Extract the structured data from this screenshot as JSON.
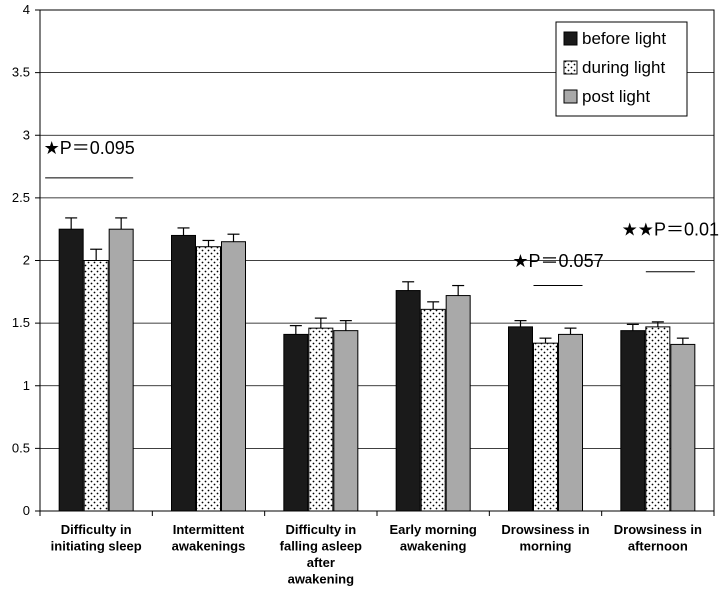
{
  "chart_data": {
    "type": "bar",
    "title": "",
    "xlabel": "",
    "ylabel": "",
    "ylim": [
      0,
      4
    ],
    "yticks": [
      0,
      0.5,
      1,
      1.5,
      2,
      2.5,
      3,
      3.5,
      4
    ],
    "ytick_labels": [
      "0",
      "0.5",
      "1",
      "1.5",
      "2",
      "2.5",
      "3",
      "3.5",
      "4"
    ],
    "grid": true,
    "legend_position": "top-right",
    "categories": [
      [
        "Difficulty in",
        "initiating sleep"
      ],
      [
        "Intermittent",
        "awakenings"
      ],
      [
        "Difficulty in",
        "falling asleep",
        "after",
        "awakening"
      ],
      [
        "Early morning",
        "awakening"
      ],
      [
        "Drowsiness in",
        "morning"
      ],
      [
        "Drowsiness in",
        "afternoon"
      ]
    ],
    "series": [
      {
        "name": "before light",
        "pattern": "solid",
        "color": "#1a1a1a",
        "values": [
          2.25,
          2.2,
          1.41,
          1.76,
          1.47,
          1.44
        ],
        "errors": [
          0.09,
          0.06,
          0.07,
          0.07,
          0.05,
          0.05
        ]
      },
      {
        "name": "during light",
        "pattern": "dots",
        "color": "#ffffff",
        "values": [
          2.0,
          2.11,
          1.46,
          1.61,
          1.34,
          1.47
        ],
        "errors": [
          0.09,
          0.05,
          0.08,
          0.06,
          0.04,
          0.04
        ]
      },
      {
        "name": "post light",
        "pattern": "gray",
        "color": "#a9a9a9",
        "values": [
          2.25,
          2.15,
          1.44,
          1.72,
          1.41,
          1.33
        ],
        "errors": [
          0.09,
          0.06,
          0.08,
          0.08,
          0.05,
          0.05
        ]
      }
    ],
    "annotations": [
      {
        "text": "★P＝0.095",
        "category_index": 0,
        "label_value": 2.85,
        "line_value": 2.66,
        "line_span": [
          0,
          2
        ]
      },
      {
        "text": "★P＝0.057",
        "category_index": 4,
        "label_value": 1.95,
        "line_value": 1.8,
        "line_span": [
          1,
          2
        ]
      },
      {
        "text": "★★P＝0.01",
        "category_index": 5,
        "label_value": 2.2,
        "line_value": 1.91,
        "line_span": [
          1,
          2
        ]
      }
    ]
  }
}
